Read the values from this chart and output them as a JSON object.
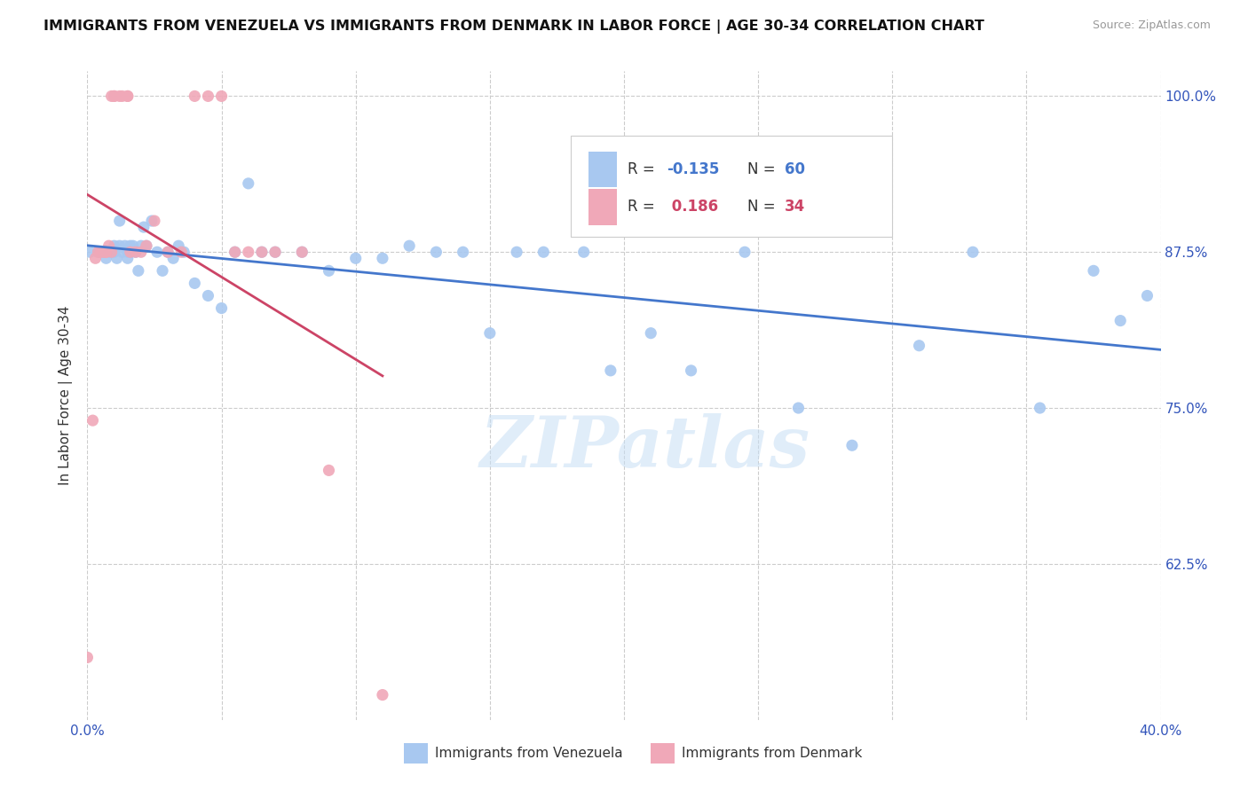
{
  "title": "IMMIGRANTS FROM VENEZUELA VS IMMIGRANTS FROM DENMARK IN LABOR FORCE | AGE 30-34 CORRELATION CHART",
  "source": "Source: ZipAtlas.com",
  "ylabel": "In Labor Force | Age 30-34",
  "x_min": 0.0,
  "x_max": 0.4,
  "y_min": 0.5,
  "y_max": 1.02,
  "x_ticks": [
    0.0,
    0.05,
    0.1,
    0.15,
    0.2,
    0.25,
    0.3,
    0.35,
    0.4
  ],
  "y_ticks": [
    0.625,
    0.75,
    0.875,
    1.0
  ],
  "y_tick_labels": [
    "62.5%",
    "75.0%",
    "87.5%",
    "100.0%"
  ],
  "color_venezuela": "#a8c8f0",
  "color_denmark": "#f0a8b8",
  "color_trend_venezuela": "#4477cc",
  "color_trend_denmark": "#cc4466",
  "watermark_text": "ZIPatlas",
  "venezuela_x": [
    0.001,
    0.004,
    0.006,
    0.007,
    0.008,
    0.009,
    0.01,
    0.01,
    0.011,
    0.012,
    0.012,
    0.013,
    0.014,
    0.015,
    0.015,
    0.016,
    0.016,
    0.017,
    0.018,
    0.019,
    0.02,
    0.021,
    0.022,
    0.024,
    0.026,
    0.028,
    0.03,
    0.032,
    0.034,
    0.036,
    0.04,
    0.045,
    0.05,
    0.055,
    0.06,
    0.065,
    0.07,
    0.08,
    0.09,
    0.1,
    0.11,
    0.12,
    0.13,
    0.14,
    0.15,
    0.16,
    0.17,
    0.185,
    0.195,
    0.21,
    0.225,
    0.245,
    0.265,
    0.285,
    0.31,
    0.33,
    0.355,
    0.375,
    0.385,
    0.395
  ],
  "venezuela_y": [
    0.875,
    0.875,
    0.875,
    0.87,
    0.875,
    0.875,
    0.88,
    0.875,
    0.87,
    0.88,
    0.9,
    0.875,
    0.88,
    0.875,
    0.87,
    0.88,
    0.875,
    0.88,
    0.875,
    0.86,
    0.88,
    0.895,
    0.88,
    0.9,
    0.875,
    0.86,
    0.875,
    0.87,
    0.88,
    0.875,
    0.85,
    0.84,
    0.83,
    0.875,
    0.93,
    0.875,
    0.875,
    0.875,
    0.86,
    0.87,
    0.87,
    0.88,
    0.875,
    0.875,
    0.81,
    0.875,
    0.875,
    0.875,
    0.78,
    0.81,
    0.78,
    0.875,
    0.75,
    0.72,
    0.8,
    0.875,
    0.75,
    0.86,
    0.82,
    0.84
  ],
  "denmark_x": [
    0.0,
    0.002,
    0.003,
    0.004,
    0.005,
    0.006,
    0.007,
    0.007,
    0.008,
    0.009,
    0.009,
    0.01,
    0.01,
    0.012,
    0.013,
    0.015,
    0.015,
    0.016,
    0.018,
    0.02,
    0.022,
    0.025,
    0.03,
    0.035,
    0.04,
    0.045,
    0.05,
    0.055,
    0.06,
    0.065,
    0.07,
    0.08,
    0.09,
    0.11
  ],
  "denmark_y": [
    0.55,
    0.74,
    0.87,
    0.875,
    0.875,
    0.875,
    0.875,
    0.875,
    0.88,
    0.875,
    1.0,
    1.0,
    1.0,
    1.0,
    1.0,
    1.0,
    1.0,
    0.875,
    0.875,
    0.875,
    0.88,
    0.9,
    0.875,
    0.875,
    1.0,
    1.0,
    1.0,
    0.875,
    0.875,
    0.875,
    0.875,
    0.875,
    0.7,
    0.52
  ],
  "legend_items": [
    {
      "color": "#a8c8f0",
      "r_label": "R = ",
      "r_value": "-0.135",
      "r_color": "#4477cc",
      "n_label": "N = ",
      "n_value": "60",
      "n_color": "#4477cc"
    },
    {
      "color": "#f0a8b8",
      "r_label": "R = ",
      "r_value": " 0.186",
      "r_color": "#cc4466",
      "n_label": "N = ",
      "n_value": "34",
      "n_color": "#cc4466"
    }
  ],
  "bottom_legend": [
    {
      "color": "#a8c8f0",
      "label": "Immigrants from Venezuela"
    },
    {
      "color": "#f0a8b8",
      "label": "Immigrants from Denmark"
    }
  ]
}
